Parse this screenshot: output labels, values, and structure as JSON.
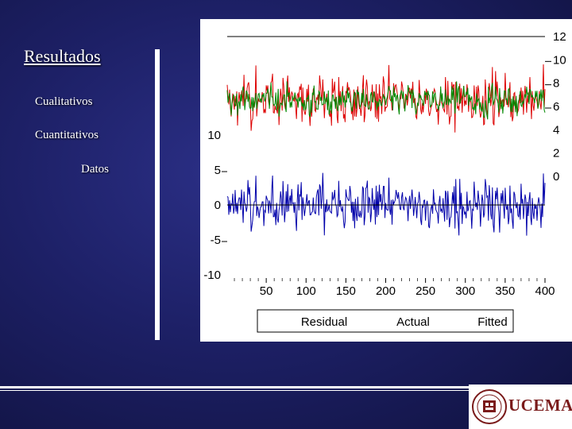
{
  "menu": {
    "title": "Resultados",
    "items": [
      {
        "label": "Cualitativos"
      },
      {
        "label": "Cuantitativos"
      },
      {
        "label": "Datos"
      }
    ]
  },
  "logo": {
    "text": "UCEMA"
  },
  "colors": {
    "background": "#1d2066",
    "residual": "#0000aa",
    "actual": "#dd0000",
    "fitted": "#008800"
  },
  "chart_data": {
    "type": "line",
    "x_range": [
      1,
      400
    ],
    "x_ticks": [
      50,
      100,
      150,
      200,
      250,
      300,
      350,
      400
    ],
    "left_axis": {
      "label_series": "Residual",
      "range": [
        -10,
        15
      ],
      "ticks": [
        "10",
        "5",
        "0",
        "-5",
        "-10"
      ]
    },
    "right_axis": {
      "label_series": "Actual, Fitted",
      "range": [
        0,
        12
      ],
      "ticks": [
        "12",
        "10",
        "8",
        "6",
        "4",
        "2",
        "0"
      ]
    },
    "series": [
      {
        "name": "Residual",
        "axis": "left",
        "mean": 0,
        "amplitude": 2.2
      },
      {
        "name": "Actual",
        "axis": "right",
        "mean": 6.5,
        "amplitude": 1.8
      },
      {
        "name": "Fitted",
        "axis": "right",
        "mean": 6.5,
        "amplitude": 1.2
      }
    ],
    "legend": {
      "placement": "bottom",
      "entries": [
        "Residual",
        "Actual",
        "Fitted"
      ]
    },
    "reference_lines": {
      "top": 12,
      "zero": 0
    }
  }
}
